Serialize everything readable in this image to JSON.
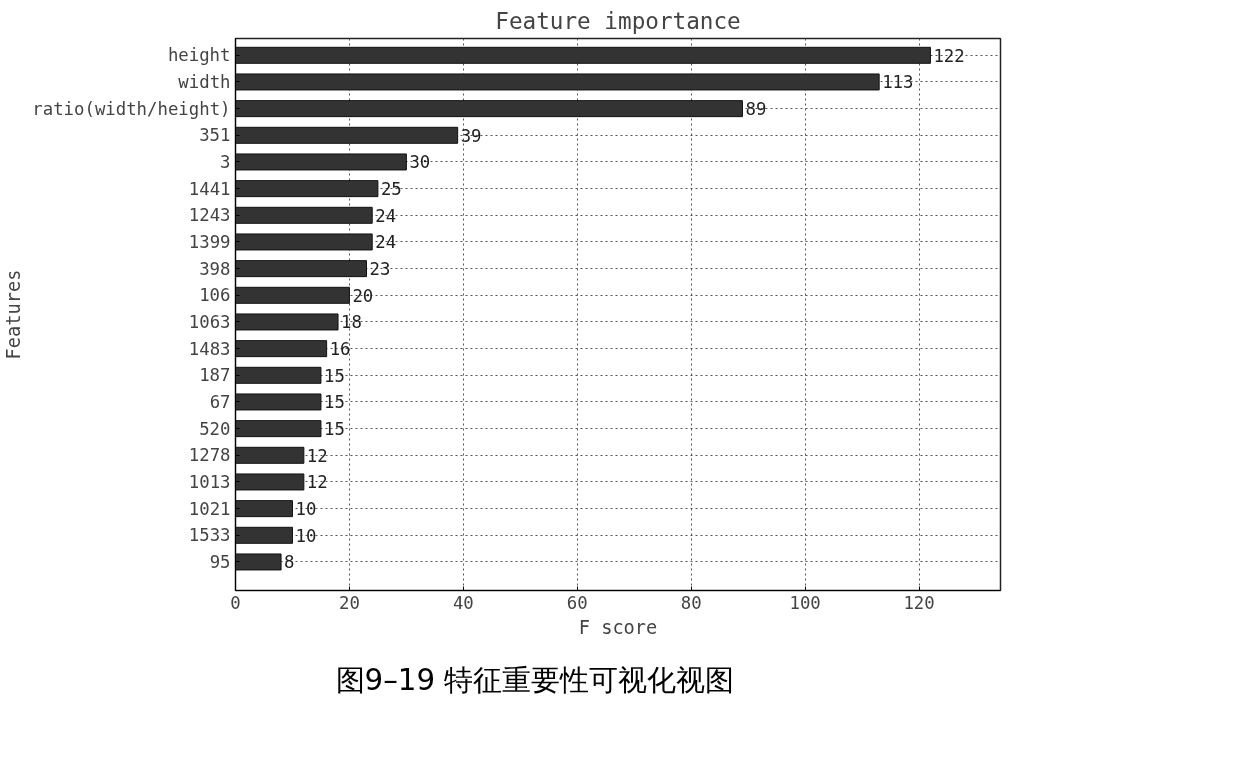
{
  "chart_data": {
    "type": "bar",
    "orientation": "horizontal",
    "title": "Feature importance",
    "xlabel": "F score",
    "ylabel": "Features",
    "categories": [
      "height",
      "width",
      "ratio(width/height)",
      "351",
      "3",
      "1441",
      "1243",
      "1399",
      "398",
      "106",
      "1063",
      "1483",
      "187",
      "67",
      "520",
      "1278",
      "1013",
      "1021",
      "1533",
      "95"
    ],
    "values": [
      122,
      113,
      89,
      39,
      30,
      25,
      24,
      24,
      23,
      20,
      18,
      16,
      15,
      15,
      15,
      12,
      12,
      10,
      10,
      8
    ],
    "color": "#333333",
    "xlim": [
      0,
      134.3
    ],
    "xticks": [
      0,
      20,
      40,
      60,
      80,
      100,
      120
    ],
    "grid": true,
    "data_labels": true,
    "annotations": [
      "图9–19 特征重要性可视化视图"
    ]
  }
}
